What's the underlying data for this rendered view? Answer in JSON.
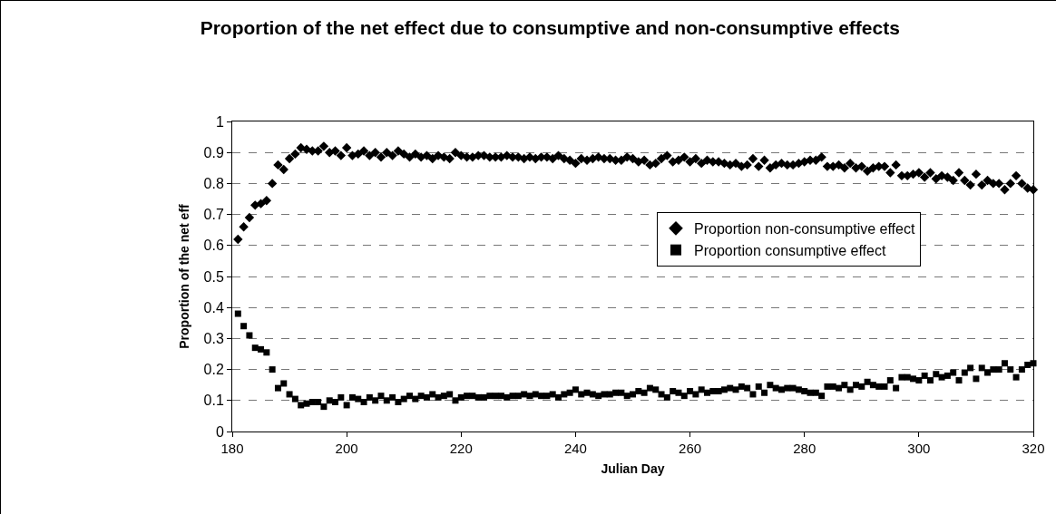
{
  "chart_data": {
    "type": "scatter",
    "title": "Proportion of the net effect due to consumptive and non-consumptive effects",
    "xlabel": "Julian Day",
    "ylabel": "Proportion of the net eff",
    "x": [
      181,
      182,
      183,
      184,
      185,
      186,
      187,
      188,
      189,
      190,
      191,
      192,
      193,
      194,
      195,
      196,
      197,
      198,
      199,
      200,
      201,
      202,
      203,
      204,
      205,
      206,
      207,
      208,
      209,
      210,
      211,
      212,
      213,
      214,
      215,
      216,
      217,
      218,
      219,
      220,
      221,
      222,
      223,
      224,
      225,
      226,
      227,
      228,
      229,
      230,
      231,
      232,
      233,
      234,
      235,
      236,
      237,
      238,
      239,
      240,
      241,
      242,
      243,
      244,
      245,
      246,
      247,
      248,
      249,
      250,
      251,
      252,
      253,
      254,
      255,
      256,
      257,
      258,
      259,
      260,
      261,
      262,
      263,
      264,
      265,
      266,
      267,
      268,
      269,
      270,
      271,
      272,
      273,
      274,
      275,
      276,
      277,
      278,
      279,
      280,
      281,
      282,
      283,
      284,
      285,
      286,
      287,
      288,
      289,
      290,
      291,
      292,
      293,
      294,
      295,
      296,
      297,
      298,
      299,
      300,
      301,
      302,
      303,
      304,
      305,
      306,
      307,
      308,
      309,
      310,
      311,
      312,
      313,
      314,
      315,
      316,
      317,
      318,
      319,
      320
    ],
    "series": [
      {
        "name": "Proportion non-consumptive effect",
        "color": "#000000",
        "marker": "diamond",
        "values": [
          0.62,
          0.66,
          0.69,
          0.73,
          0.735,
          0.745,
          0.8,
          0.86,
          0.845,
          0.88,
          0.895,
          0.915,
          0.91,
          0.905,
          0.905,
          0.92,
          0.9,
          0.905,
          0.89,
          0.915,
          0.89,
          0.895,
          0.905,
          0.89,
          0.9,
          0.885,
          0.9,
          0.89,
          0.905,
          0.895,
          0.885,
          0.895,
          0.885,
          0.89,
          0.88,
          0.89,
          0.885,
          0.88,
          0.9,
          0.89,
          0.885,
          0.885,
          0.89,
          0.89,
          0.885,
          0.885,
          0.885,
          0.89,
          0.885,
          0.885,
          0.88,
          0.885,
          0.88,
          0.885,
          0.885,
          0.88,
          0.89,
          0.88,
          0.875,
          0.865,
          0.88,
          0.875,
          0.88,
          0.885,
          0.88,
          0.88,
          0.875,
          0.875,
          0.885,
          0.88,
          0.87,
          0.875,
          0.86,
          0.865,
          0.88,
          0.89,
          0.87,
          0.875,
          0.885,
          0.87,
          0.88,
          0.865,
          0.875,
          0.87,
          0.87,
          0.865,
          0.86,
          0.865,
          0.855,
          0.86,
          0.88,
          0.855,
          0.875,
          0.85,
          0.86,
          0.865,
          0.86,
          0.86,
          0.865,
          0.87,
          0.875,
          0.875,
          0.885,
          0.855,
          0.855,
          0.86,
          0.85,
          0.865,
          0.85,
          0.855,
          0.84,
          0.85,
          0.855,
          0.855,
          0.835,
          0.86,
          0.825,
          0.825,
          0.83,
          0.835,
          0.82,
          0.835,
          0.815,
          0.825,
          0.82,
          0.81,
          0.835,
          0.81,
          0.795,
          0.83,
          0.795,
          0.81,
          0.8,
          0.8,
          0.78,
          0.8,
          0.825,
          0.8,
          0.785,
          0.78
        ]
      },
      {
        "name": "Proportion consumptive effect",
        "color": "#000000",
        "marker": "square",
        "values": [
          0.38,
          0.34,
          0.31,
          0.27,
          0.265,
          0.255,
          0.2,
          0.14,
          0.155,
          0.12,
          0.105,
          0.085,
          0.09,
          0.095,
          0.095,
          0.08,
          0.1,
          0.095,
          0.11,
          0.085,
          0.11,
          0.105,
          0.095,
          0.11,
          0.1,
          0.115,
          0.1,
          0.11,
          0.095,
          0.105,
          0.115,
          0.105,
          0.115,
          0.11,
          0.12,
          0.11,
          0.115,
          0.12,
          0.1,
          0.11,
          0.115,
          0.115,
          0.11,
          0.11,
          0.115,
          0.115,
          0.115,
          0.11,
          0.115,
          0.115,
          0.12,
          0.115,
          0.12,
          0.115,
          0.115,
          0.12,
          0.11,
          0.12,
          0.125,
          0.135,
          0.12,
          0.125,
          0.12,
          0.115,
          0.12,
          0.12,
          0.125,
          0.125,
          0.115,
          0.12,
          0.13,
          0.125,
          0.14,
          0.135,
          0.12,
          0.11,
          0.13,
          0.125,
          0.115,
          0.13,
          0.12,
          0.135,
          0.125,
          0.13,
          0.13,
          0.135,
          0.14,
          0.135,
          0.145,
          0.14,
          0.12,
          0.145,
          0.125,
          0.15,
          0.14,
          0.135,
          0.14,
          0.14,
          0.135,
          0.13,
          0.125,
          0.125,
          0.115,
          0.145,
          0.145,
          0.14,
          0.15,
          0.135,
          0.15,
          0.145,
          0.16,
          0.15,
          0.145,
          0.145,
          0.165,
          0.14,
          0.175,
          0.175,
          0.17,
          0.165,
          0.18,
          0.165,
          0.185,
          0.175,
          0.18,
          0.19,
          0.165,
          0.19,
          0.205,
          0.17,
          0.205,
          0.19,
          0.2,
          0.2,
          0.22,
          0.2,
          0.175,
          0.2,
          0.215,
          0.22
        ]
      }
    ],
    "xlim": [
      180,
      320
    ],
    "xticks": [
      180,
      200,
      220,
      240,
      260,
      280,
      300,
      320
    ],
    "ylim": [
      0,
      1
    ],
    "yticks": [
      0,
      0.1,
      0.2,
      0.3,
      0.4,
      0.5,
      0.6,
      0.7,
      0.8,
      0.9,
      1
    ],
    "grid": "y",
    "legend": "right"
  }
}
